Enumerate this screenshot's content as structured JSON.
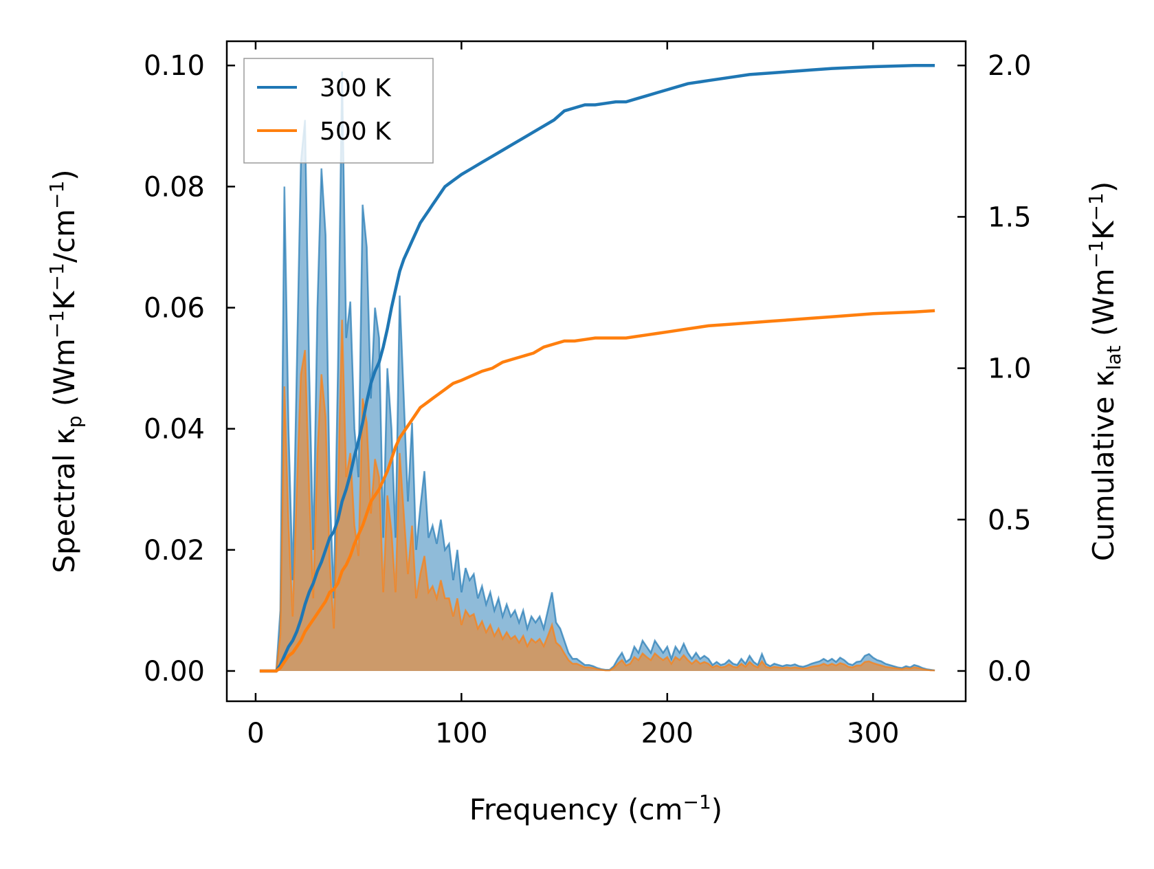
{
  "chart_data": {
    "type": "line",
    "xlabel": "Frequency (cm",
    "xlabel_sup": "−1",
    "xlabel_end": ")",
    "ylabel_left": "Spectral κ",
    "ylabel_left_sub": "p",
    "ylabel_left_units": " (Wm",
    "ylabel_left_sup1": "−1",
    "ylabel_left_mid": "K",
    "ylabel_left_sup2": "−1",
    "ylabel_left_mid2": "/cm",
    "ylabel_left_sup3": "−1",
    "ylabel_left_end": ")",
    "ylabel_right": "Cumulative κ",
    "ylabel_right_sub": "lat",
    "ylabel_right_units": " (Wm",
    "ylabel_right_sup1": "−1",
    "ylabel_right_mid": "K",
    "ylabel_right_sup2": "−1",
    "ylabel_right_end": ")",
    "xlim": [
      -14,
      345
    ],
    "ylim_left": [
      -0.005,
      0.104
    ],
    "ylim_right": [
      -0.1,
      2.08
    ],
    "xticks": [
      0,
      100,
      200,
      300
    ],
    "xtick_labels": [
      "0",
      "100",
      "200",
      "300"
    ],
    "yticks_left": [
      0.0,
      0.02,
      0.04,
      0.06,
      0.08,
      0.1
    ],
    "ytick_labels_left": [
      "0.00",
      "0.02",
      "0.04",
      "0.06",
      "0.08",
      "0.10"
    ],
    "yticks_right": [
      0.0,
      0.5,
      1.0,
      1.5,
      2.0
    ],
    "ytick_labels_right": [
      "0.0",
      "0.5",
      "1.0",
      "1.5",
      "2.0"
    ],
    "legend_position": "top-left",
    "spectral_x": [
      2,
      10,
      12,
      14,
      16,
      18,
      20,
      22,
      24,
      26,
      28,
      30,
      32,
      34,
      36,
      38,
      40,
      42,
      44,
      46,
      48,
      50,
      52,
      54,
      56,
      58,
      60,
      62,
      64,
      66,
      68,
      70,
      72,
      74,
      76,
      78,
      80,
      82,
      84,
      86,
      88,
      90,
      92,
      94,
      96,
      98,
      100,
      102,
      104,
      106,
      108,
      110,
      112,
      114,
      116,
      118,
      120,
      122,
      124,
      126,
      128,
      130,
      132,
      134,
      136,
      138,
      140,
      142,
      144,
      146,
      148,
      150,
      152,
      154,
      156,
      158,
      160,
      162,
      164,
      166,
      168,
      170,
      172,
      174,
      176,
      178,
      180,
      182,
      184,
      186,
      188,
      190,
      192,
      194,
      196,
      198,
      200,
      202,
      204,
      206,
      208,
      210,
      212,
      214,
      216,
      218,
      220,
      222,
      224,
      226,
      228,
      230,
      232,
      234,
      236,
      238,
      240,
      242,
      244,
      246,
      248,
      250,
      252,
      254,
      256,
      258,
      260,
      262,
      264,
      266,
      268,
      270,
      272,
      274,
      276,
      278,
      280,
      282,
      284,
      286,
      288,
      290,
      292,
      294,
      296,
      298,
      300,
      302,
      304,
      306,
      308,
      310,
      312,
      314,
      316,
      318,
      320,
      322,
      324,
      326,
      328,
      330
    ],
    "series": [
      {
        "name": "300 K",
        "color": "#1f77b4",
        "spectral": [
          0,
          0,
          0.01,
          0.08,
          0.04,
          0.015,
          0.05,
          0.084,
          0.091,
          0.05,
          0.02,
          0.06,
          0.083,
          0.072,
          0.03,
          0.012,
          0.05,
          0.099,
          0.055,
          0.061,
          0.04,
          0.032,
          0.077,
          0.07,
          0.045,
          0.06,
          0.055,
          0.022,
          0.05,
          0.04,
          0.022,
          0.062,
          0.045,
          0.028,
          0.041,
          0.02,
          0.027,
          0.033,
          0.022,
          0.024,
          0.021,
          0.025,
          0.02,
          0.021,
          0.015,
          0.02,
          0.013,
          0.017,
          0.015,
          0.016,
          0.012,
          0.014,
          0.011,
          0.013,
          0.01,
          0.012,
          0.009,
          0.011,
          0.009,
          0.01,
          0.008,
          0.01,
          0.007,
          0.009,
          0.008,
          0.009,
          0.007,
          0.01,
          0.013,
          0.008,
          0.007,
          0.005,
          0.003,
          0.002,
          0.002,
          0.0015,
          0.001,
          0.001,
          0.0008,
          0.0005,
          0.0003,
          0.0002,
          0.0002,
          0.0008,
          0.002,
          0.003,
          0.0015,
          0.002,
          0.004,
          0.003,
          0.005,
          0.004,
          0.003,
          0.005,
          0.004,
          0.003,
          0.004,
          0.002,
          0.004,
          0.003,
          0.0045,
          0.003,
          0.002,
          0.003,
          0.002,
          0.0025,
          0.002,
          0.001,
          0.0015,
          0.001,
          0.0012,
          0.0018,
          0.0012,
          0.001,
          0.002,
          0.0012,
          0.0025,
          0.0015,
          0.001,
          0.0028,
          0.0012,
          0.0008,
          0.0012,
          0.001,
          0.0008,
          0.001,
          0.0009,
          0.0011,
          0.0008,
          0.0007,
          0.0009,
          0.0012,
          0.0014,
          0.0016,
          0.002,
          0.0016,
          0.002,
          0.0015,
          0.0022,
          0.0018,
          0.0012,
          0.001,
          0.0015,
          0.0016,
          0.0025,
          0.0028,
          0.0022,
          0.0018,
          0.0016,
          0.0012,
          0.001,
          0.0008,
          0.0006,
          0.0005,
          0.0008,
          0.0006,
          0.001,
          0.0008,
          0.0005,
          0.0003,
          0.0002,
          0.0001
        ],
        "cum_x": [
          2,
          10,
          12,
          14,
          16,
          18,
          20,
          22,
          24,
          26,
          28,
          30,
          32,
          34,
          36,
          38,
          40,
          42,
          44,
          46,
          48,
          50,
          52,
          54,
          56,
          58,
          60,
          62,
          64,
          66,
          68,
          70,
          72,
          74,
          76,
          78,
          80,
          82,
          84,
          86,
          88,
          90,
          92,
          94,
          96,
          98,
          100,
          105,
          110,
          115,
          120,
          125,
          130,
          135,
          140,
          145,
          150,
          155,
          160,
          165,
          170,
          175,
          180,
          185,
          190,
          195,
          200,
          210,
          220,
          230,
          240,
          250,
          260,
          270,
          280,
          290,
          300,
          310,
          320,
          330
        ],
        "cumulative": [
          0,
          0,
          0.02,
          0.05,
          0.08,
          0.1,
          0.13,
          0.17,
          0.22,
          0.26,
          0.29,
          0.33,
          0.36,
          0.4,
          0.44,
          0.46,
          0.5,
          0.56,
          0.6,
          0.65,
          0.71,
          0.76,
          0.82,
          0.89,
          0.95,
          0.99,
          1.02,
          1.07,
          1.13,
          1.2,
          1.26,
          1.32,
          1.36,
          1.39,
          1.42,
          1.45,
          1.48,
          1.5,
          1.52,
          1.54,
          1.56,
          1.58,
          1.6,
          1.61,
          1.62,
          1.63,
          1.64,
          1.66,
          1.68,
          1.7,
          1.72,
          1.74,
          1.76,
          1.78,
          1.8,
          1.82,
          1.85,
          1.86,
          1.87,
          1.87,
          1.875,
          1.88,
          1.88,
          1.89,
          1.9,
          1.91,
          1.92,
          1.94,
          1.95,
          1.96,
          1.97,
          1.975,
          1.98,
          1.985,
          1.99,
          1.993,
          1.996,
          1.998,
          2.0,
          2.0
        ]
      },
      {
        "name": "500 K",
        "color": "#ff7f0e",
        "spectral": [
          0,
          0,
          0.006,
          0.047,
          0.024,
          0.009,
          0.03,
          0.049,
          0.053,
          0.03,
          0.012,
          0.036,
          0.049,
          0.042,
          0.018,
          0.007,
          0.03,
          0.058,
          0.032,
          0.036,
          0.024,
          0.019,
          0.045,
          0.041,
          0.026,
          0.035,
          0.032,
          0.013,
          0.029,
          0.023,
          0.013,
          0.036,
          0.026,
          0.016,
          0.024,
          0.012,
          0.016,
          0.019,
          0.013,
          0.014,
          0.012,
          0.015,
          0.012,
          0.012,
          0.009,
          0.012,
          0.0076,
          0.01,
          0.009,
          0.0094,
          0.007,
          0.0082,
          0.0064,
          0.0076,
          0.0058,
          0.007,
          0.0053,
          0.0064,
          0.0053,
          0.0058,
          0.0047,
          0.0058,
          0.0041,
          0.0053,
          0.0047,
          0.0053,
          0.0041,
          0.0058,
          0.0076,
          0.0047,
          0.0041,
          0.0029,
          0.0018,
          0.0012,
          0.0012,
          0.0009,
          0.0006,
          0.0006,
          0.0005,
          0.0003,
          0.0002,
          0.0001,
          0.0001,
          0.0005,
          0.0012,
          0.0018,
          0.0009,
          0.0012,
          0.0023,
          0.0018,
          0.0029,
          0.0023,
          0.0018,
          0.0029,
          0.0023,
          0.0018,
          0.0023,
          0.0012,
          0.0023,
          0.0018,
          0.0026,
          0.0018,
          0.0012,
          0.0018,
          0.0012,
          0.0015,
          0.0012,
          0.0006,
          0.0009,
          0.0006,
          0.0007,
          0.0011,
          0.0007,
          0.0006,
          0.0012,
          0.0007,
          0.0015,
          0.0009,
          0.0006,
          0.0016,
          0.0007,
          0.0005,
          0.0007,
          0.0006,
          0.0005,
          0.0006,
          0.0005,
          0.0006,
          0.0005,
          0.0004,
          0.0005,
          0.0007,
          0.0008,
          0.0009,
          0.0012,
          0.0009,
          0.0012,
          0.0009,
          0.0013,
          0.0011,
          0.0007,
          0.0006,
          0.0009,
          0.0009,
          0.0015,
          0.0016,
          0.0013,
          0.0011,
          0.0009,
          0.0007,
          0.0006,
          0.0005,
          0.0004,
          0.0003,
          0.0005,
          0.0004,
          0.0006,
          0.0005,
          0.0003,
          0.0002,
          0.0001,
          0.0001
        ],
        "cum_x": [
          2,
          10,
          12,
          14,
          16,
          18,
          20,
          22,
          24,
          26,
          28,
          30,
          32,
          34,
          36,
          38,
          40,
          42,
          44,
          46,
          48,
          50,
          52,
          54,
          56,
          58,
          60,
          62,
          64,
          66,
          68,
          70,
          72,
          74,
          76,
          78,
          80,
          82,
          84,
          86,
          88,
          90,
          92,
          94,
          96,
          98,
          100,
          105,
          110,
          115,
          120,
          125,
          130,
          135,
          140,
          145,
          150,
          155,
          160,
          165,
          170,
          175,
          180,
          185,
          190,
          195,
          200,
          210,
          220,
          230,
          240,
          250,
          260,
          270,
          280,
          290,
          300,
          310,
          320,
          330
        ],
        "cumulative": [
          0,
          0,
          0.01,
          0.03,
          0.05,
          0.06,
          0.08,
          0.1,
          0.13,
          0.15,
          0.17,
          0.19,
          0.21,
          0.23,
          0.26,
          0.27,
          0.29,
          0.33,
          0.35,
          0.38,
          0.42,
          0.45,
          0.48,
          0.52,
          0.56,
          0.58,
          0.6,
          0.63,
          0.66,
          0.7,
          0.74,
          0.77,
          0.79,
          0.81,
          0.83,
          0.85,
          0.87,
          0.88,
          0.89,
          0.9,
          0.91,
          0.92,
          0.93,
          0.94,
          0.95,
          0.955,
          0.96,
          0.975,
          0.99,
          1.0,
          1.02,
          1.03,
          1.04,
          1.05,
          1.07,
          1.08,
          1.09,
          1.09,
          1.095,
          1.1,
          1.1,
          1.1,
          1.1,
          1.105,
          1.11,
          1.115,
          1.12,
          1.13,
          1.14,
          1.145,
          1.15,
          1.155,
          1.16,
          1.165,
          1.17,
          1.175,
          1.18,
          1.183,
          1.186,
          1.19
        ]
      }
    ]
  }
}
